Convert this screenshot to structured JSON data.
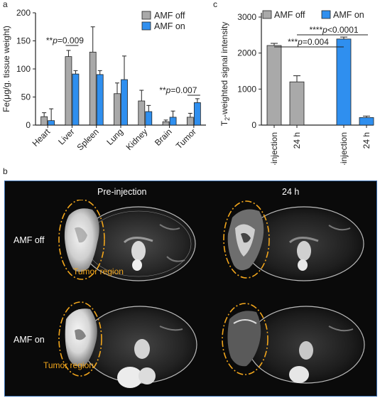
{
  "panels": {
    "a": "a",
    "b": "b",
    "c": "c"
  },
  "colors": {
    "off": "#a9a9a9",
    "on": "#2f8fef",
    "tumor_outline": "#f2a61c"
  },
  "chart_data": [
    {
      "panel": "a",
      "type": "bar",
      "ylabel": "Fe(μg/g. tissue weight)",
      "ylim": [
        0,
        200
      ],
      "yticks": [
        "0",
        "50",
        "100",
        "150",
        "200"
      ],
      "categories": [
        "Heart",
        "Liver",
        "Spleen",
        "Lung",
        "Kidney",
        "Brain",
        "Tumor"
      ],
      "series": [
        {
          "name": "AMF off",
          "color": "#a9a9a9",
          "values": [
            15,
            122,
            130,
            56,
            43,
            6,
            14
          ],
          "errors": [
            7,
            11,
            45,
            19,
            19,
            3,
            7
          ]
        },
        {
          "name": "AMF on",
          "color": "#2f8fef",
          "values": [
            8,
            91,
            90,
            81,
            24,
            14,
            40
          ],
          "errors": [
            21,
            6,
            7,
            42,
            11,
            11,
            7
          ]
        }
      ],
      "legend_position": "top-right",
      "annotations": [
        {
          "text": "**p=0.009",
          "category": "Liver"
        },
        {
          "text": "**p=0.007",
          "category": "Tumor"
        }
      ]
    },
    {
      "panel": "c",
      "type": "bar",
      "ylabel": "T2-weighted signal intensity",
      "ylim": [
        0,
        3000
      ],
      "yticks": [
        "0",
        "1000",
        "2000",
        "3000"
      ],
      "categories": [
        "Pre-injection",
        "24 h",
        "Pre-injection",
        "24 h"
      ],
      "series_index": [
        0,
        0,
        1,
        1
      ],
      "values": [
        2210,
        1200,
        2390,
        210
      ],
      "errors": [
        60,
        170,
        55,
        40
      ],
      "legend": [
        "AMF off",
        "AMF on"
      ],
      "legend_position": "top",
      "annotations": [
        {
          "text": "****p<0.0001"
        },
        {
          "text": "***p=0.004"
        }
      ]
    }
  ],
  "mri": {
    "col_headers": [
      "Pre-injection",
      "24 h"
    ],
    "row_labels": [
      "AMF off",
      "AMF on"
    ],
    "tumor_label": "Tumor region"
  }
}
